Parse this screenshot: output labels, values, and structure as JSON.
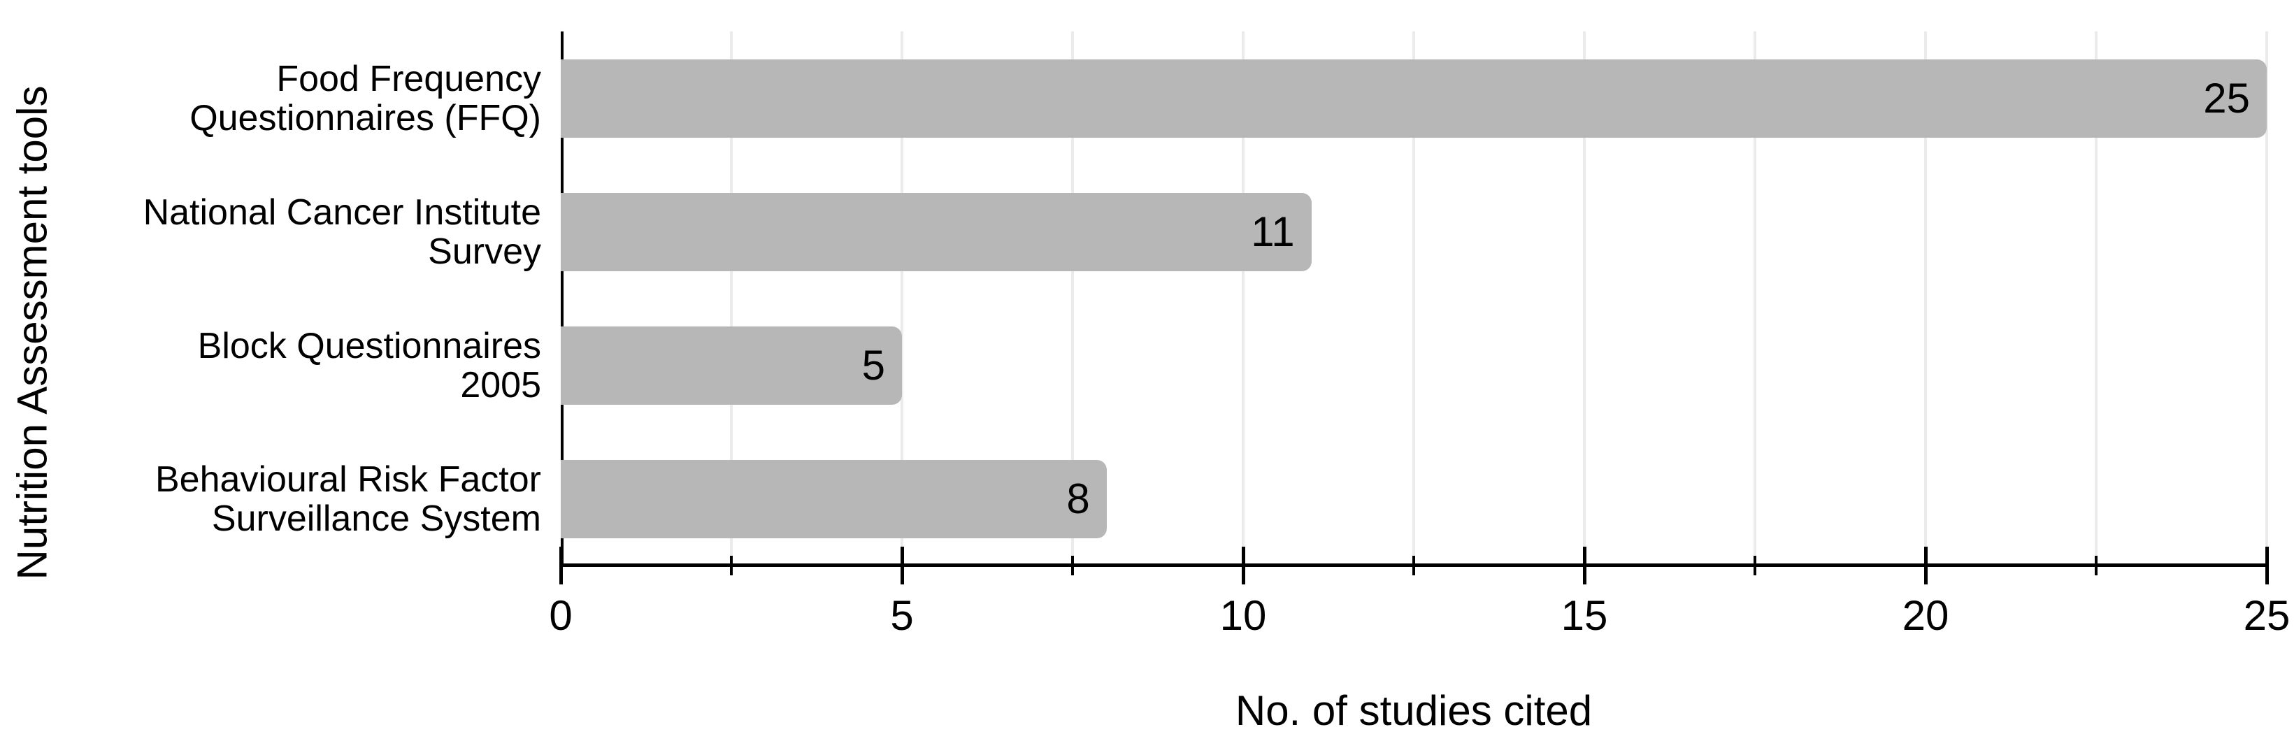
{
  "chart_data": {
    "type": "bar",
    "orientation": "horizontal",
    "title": "",
    "xlabel": "No. of studies cited",
    "ylabel": "Nutrition Assessment tools",
    "categories": [
      "Food Frequency\nQuestionnaires (FFQ)",
      "National Cancer Institute\nSurvey",
      "Block Questionnaires\n2005",
      "Behavioural Risk Factor\nSurveillance System"
    ],
    "values": [
      25,
      11,
      5,
      8
    ],
    "value_label_position": "inside-end",
    "xlim": [
      0,
      25
    ],
    "x_major_ticks": [
      0,
      5,
      10,
      15,
      20,
      25
    ],
    "x_minor_ticks": [
      2.5,
      7.5,
      12.5,
      17.5,
      22.5
    ],
    "gridlines_x": [
      2.5,
      5,
      7.5,
      10,
      12.5,
      15,
      17.5,
      20,
      22.5,
      25
    ],
    "grid": "vertical",
    "legend": "none",
    "colors": {
      "bar": "#b7b7b7",
      "grid": "#ebebeb",
      "axis": "#000000",
      "text": "#000000",
      "background": "#ffffff"
    }
  }
}
